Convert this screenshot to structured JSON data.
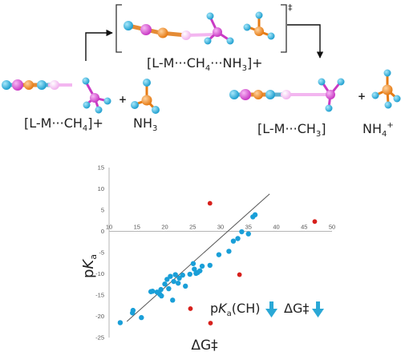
{
  "scheme": {
    "reactant_complex": {
      "label": "[L-M···CH",
      "sub": "4",
      "charge": "]+"
    },
    "plus_1": "+",
    "reactant_base": {
      "label": "NH",
      "sub": "3"
    },
    "transition_state": {
      "part1": "[L-M···CH",
      "sub1": "4",
      "part2": "···NH",
      "sub2": "3",
      "part3": "]+",
      "ts_symbol": "‡"
    },
    "product_complex": {
      "label": "[L-M···CH",
      "sub": "3",
      "close": "]"
    },
    "plus_2": "+",
    "product_acid": {
      "label": "NH",
      "sub": "4",
      "charge": "+"
    },
    "colors": {
      "metal": "#d94fd6",
      "ligand": "#2aa8d6",
      "carbon": "#f08a24",
      "hydrogen": "#4bc4e8",
      "bond_fade": "#f3b6f0"
    }
  },
  "annotations": {
    "pka_prefix": "p",
    "pka_italic": "K",
    "pka_sub": "a",
    "pka_suffix": "(CH)",
    "dg_label": "ΔG‡",
    "arrow_color": "#2aa8d6"
  },
  "chart_data": {
    "type": "scatter",
    "xlabel": "ΔG‡",
    "ylabel_prefix": "p",
    "ylabel_italic": "K",
    "ylabel_sub": "a",
    "xlim": [
      10,
      50
    ],
    "ylim": [
      -25,
      15
    ],
    "xticks": [
      10,
      15,
      20,
      25,
      30,
      35,
      40,
      45,
      50
    ],
    "yticks": [
      15,
      10,
      5,
      0,
      -5,
      -10,
      -15,
      -20,
      -25
    ],
    "grid": false,
    "series": [
      {
        "color": "#1a9fd8",
        "points": [
          [
            12,
            -21.5
          ],
          [
            14.2,
            -19.2
          ],
          [
            14.3,
            -18.6
          ],
          [
            15.8,
            -20.3
          ],
          [
            17.5,
            -14.2
          ],
          [
            17.8,
            -14.1
          ],
          [
            18.6,
            -14.3
          ],
          [
            19.1,
            -14.8
          ],
          [
            19.3,
            -13.7
          ],
          [
            19.4,
            -15.2
          ],
          [
            20.0,
            -12.4
          ],
          [
            20.4,
            -11.3
          ],
          [
            20.7,
            -13.5
          ],
          [
            21.0,
            -10.6
          ],
          [
            21.4,
            -16.2
          ],
          [
            21.6,
            -11.8
          ],
          [
            21.9,
            -10.2
          ],
          [
            22.4,
            -12.2
          ],
          [
            22.6,
            -11.0
          ],
          [
            23.2,
            -10.3
          ],
          [
            23.7,
            -12.9
          ],
          [
            24.5,
            -10.1
          ],
          [
            25.1,
            -7.6
          ],
          [
            25.3,
            -8.9
          ],
          [
            25.6,
            -9.9
          ],
          [
            25.9,
            -9.7
          ],
          [
            26.3,
            -9.3
          ],
          [
            26.7,
            -8.2
          ],
          [
            28.1,
            -8.0
          ],
          [
            29.7,
            -5.5
          ],
          [
            31.5,
            -4.7
          ],
          [
            32.3,
            -2.3
          ],
          [
            33.1,
            -1.7
          ],
          [
            35.0,
            -0.6
          ],
          [
            35.8,
            3.4
          ],
          [
            36.2,
            3.9
          ],
          [
            33.8,
            -0.1
          ]
        ]
      },
      {
        "color": "#d7201c",
        "points": [
          [
            28.1,
            6.6
          ],
          [
            46.9,
            2.3
          ],
          [
            33.4,
            -10.2
          ],
          [
            24.6,
            -18.2
          ],
          [
            28.2,
            -21.6
          ]
        ]
      }
    ],
    "trendline": {
      "x": [
        13.2,
        38.8
      ],
      "y": [
        -21.2,
        8.8
      ],
      "color": "#555555"
    }
  }
}
